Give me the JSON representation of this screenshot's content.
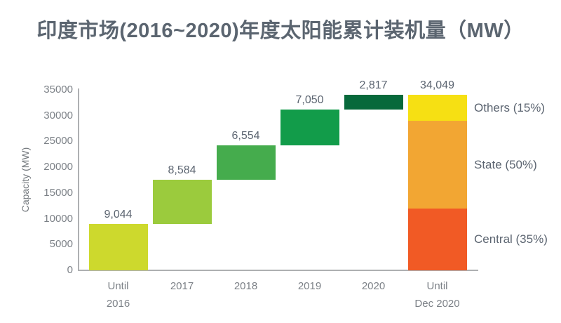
{
  "title": "印度市场(2016~2020)年度太阳能累计装机量（MW）",
  "chart_data": {
    "type": "bar",
    "subtype": "waterfall-with-stacked-total",
    "title": "印度市场(2016~2020)年度太阳能累计装机量（MW）",
    "xlabel": "",
    "ylabel": "Capacity (MW)",
    "ylim": [
      0,
      35000
    ],
    "yticks": [
      0,
      5000,
      10000,
      15000,
      20000,
      25000,
      30000,
      35000
    ],
    "grid": false,
    "legend_position": "right-of-total-bar",
    "categories": [
      "Until\n2016",
      "2017",
      "2018",
      "2019",
      "2020",
      "Until\nDec 2020"
    ],
    "bars": [
      {
        "category": "Until\n2016",
        "start": 0,
        "value": 9044,
        "label": "9,044",
        "color": "#cdd92d"
      },
      {
        "category": "2017",
        "start": 9044,
        "value": 8584,
        "label": "8,584",
        "color": "#9bcb3d"
      },
      {
        "category": "2018",
        "start": 17628,
        "value": 6554,
        "label": "6,554",
        "color": "#45ac4d"
      },
      {
        "category": "2019",
        "start": 24182,
        "value": 7050,
        "label": "7,050",
        "color": "#129c4a"
      },
      {
        "category": "2020",
        "start": 31232,
        "value": 2817,
        "label": "2,817",
        "color": "#07693b"
      },
      {
        "category": "Until\nDec 2020",
        "start": 0,
        "value": 34049,
        "label": "34,049",
        "stacked": true,
        "segments": [
          {
            "name": "Central (35%)",
            "value": 11917,
            "color": "#f15a25"
          },
          {
            "name": "State (50%)",
            "value": 17025,
            "color": "#f2a633"
          },
          {
            "name": "Others (15%)",
            "value": 5107,
            "color": "#f6e013"
          }
        ]
      }
    ],
    "colors": {
      "title_text": "#5b6570",
      "axis_line": "#aeb0b2",
      "tick_text": "#7c8187",
      "value_text": "#5c6571"
    }
  }
}
